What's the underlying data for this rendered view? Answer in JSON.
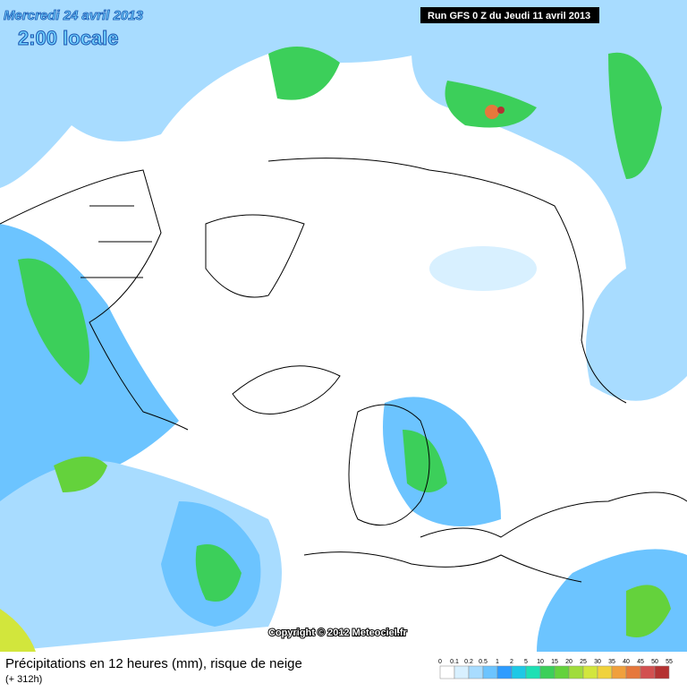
{
  "header": {
    "date": "Mercredi 24 avril 2013",
    "time": "2:00 locale",
    "run": "Run GFS 0 Z du Jeudi 11 avril 2013"
  },
  "copyright": "Copyright © 2012 Meteociel.fr",
  "footer": {
    "title": "Précipitations en 12 heures (mm), risque de neige",
    "lead": "(+ 312h)"
  },
  "legend": {
    "labels": [
      0,
      0.1,
      0.2,
      0.5,
      1,
      2,
      5,
      10,
      15,
      20,
      25,
      30,
      35,
      40,
      45,
      50,
      55
    ],
    "colors": [
      "#ffffff",
      "#d8f0ff",
      "#a8dcff",
      "#6cc4ff",
      "#2e9cff",
      "#1ec8e6",
      "#1ee0b4",
      "#3ccf5a",
      "#64d23c",
      "#a0dc3c",
      "#d2e63c",
      "#f0d23c",
      "#f0a03c",
      "#e6783c",
      "#d25050",
      "#b43232"
    ]
  }
}
